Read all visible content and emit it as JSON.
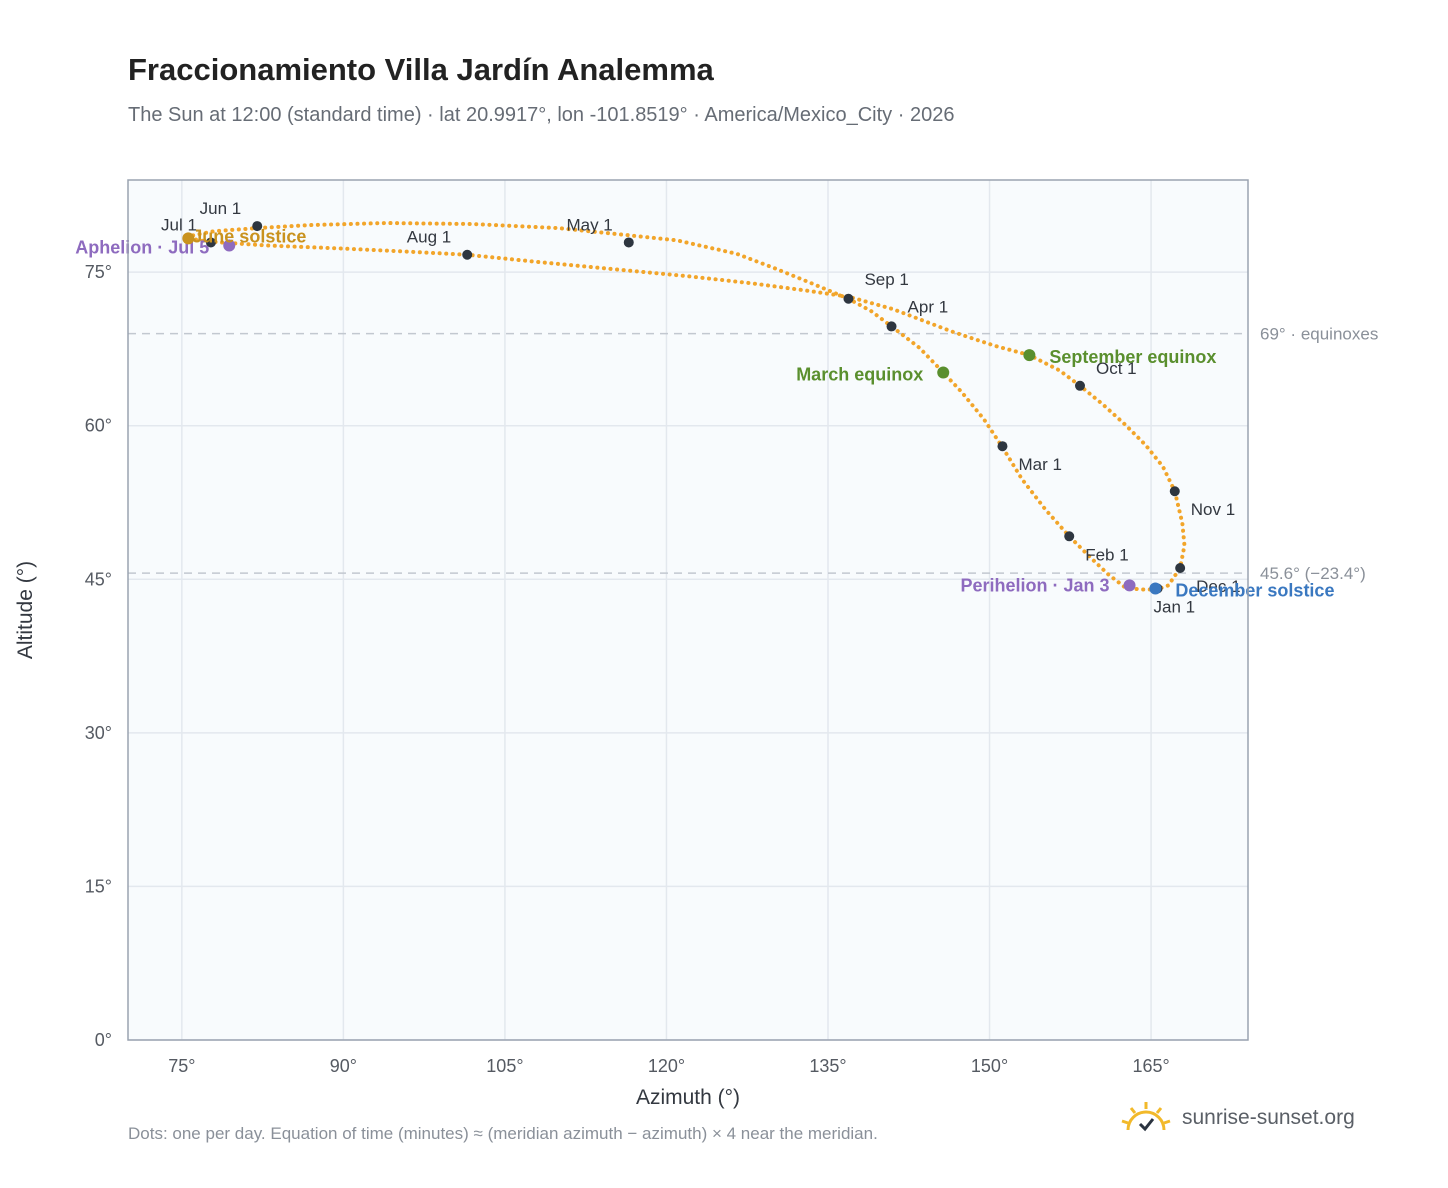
{
  "header": {
    "title": "Fraccionamiento Villa Jardín Analemma",
    "subtitle": "The Sun at 12:00 (standard time) · lat 20.9917°, lon -101.8519° · America/Mexico_City · 2026"
  },
  "footer": {
    "note": "Dots: one per day. Equation of time (minutes) ≈ (meridian azimuth − azimuth) × 4 near the meridian.",
    "brand": "sunrise-sunset.org"
  },
  "chart_data": {
    "type": "scatter",
    "xlabel": "Azimuth (°)",
    "ylabel": "Altitude (°)",
    "xlim": [
      70,
      174
    ],
    "ylim": [
      0,
      84
    ],
    "x_ticks": [
      75,
      90,
      105,
      120,
      135,
      150,
      165
    ],
    "x_tick_labels": [
      "75°",
      "90°",
      "105°",
      "120°",
      "135°",
      "150°",
      "165°"
    ],
    "y_ticks": [
      0,
      15,
      30,
      45,
      60,
      75
    ],
    "y_tick_labels": [
      "0°",
      "15°",
      "30°",
      "45°",
      "60°",
      "75°"
    ],
    "grid": true,
    "path_color": "#f2a52a",
    "analemma_path": [
      [
        165.5,
        44.0
      ],
      [
        164.0,
        44.0
      ],
      [
        162.6,
        44.2
      ],
      [
        161.0,
        45.5
      ],
      [
        159.3,
        47.2
      ],
      [
        157.4,
        49.2
      ],
      [
        155.2,
        51.8
      ],
      [
        153.0,
        54.8
      ],
      [
        151.2,
        57.9
      ],
      [
        149.5,
        60.6
      ],
      [
        147.4,
        63.3
      ],
      [
        145.7,
        65.2
      ],
      [
        143.5,
        67.6
      ],
      [
        140.9,
        69.7
      ],
      [
        139.0,
        71.2
      ],
      [
        136.9,
        72.4
      ],
      [
        133.5,
        73.9
      ],
      [
        130.0,
        75.4
      ],
      [
        126.5,
        76.8
      ],
      [
        121.0,
        78.1
      ],
      [
        116.5,
        78.6
      ],
      [
        110.0,
        79.3
      ],
      [
        102.0,
        79.7
      ],
      [
        94.0,
        79.8
      ],
      [
        87.0,
        79.6
      ],
      [
        82.0,
        79.3
      ],
      [
        78.0,
        79.0
      ],
      [
        75.6,
        78.5
      ],
      [
        76.5,
        78.1
      ],
      [
        78.6,
        77.9
      ],
      [
        83.0,
        77.6
      ],
      [
        90.0,
        77.3
      ],
      [
        96.0,
        77.0
      ],
      [
        101.5,
        76.7
      ],
      [
        108.0,
        76.0
      ],
      [
        115.0,
        75.3
      ],
      [
        122.0,
        74.6
      ],
      [
        128.0,
        73.9
      ],
      [
        133.0,
        73.2
      ],
      [
        136.9,
        72.6
      ],
      [
        141.0,
        71.4
      ],
      [
        146.5,
        69.2
      ],
      [
        150.5,
        67.8
      ],
      [
        153.7,
        66.9
      ],
      [
        156.5,
        65.4
      ],
      [
        158.4,
        63.9
      ],
      [
        160.5,
        62.1
      ],
      [
        162.6,
        60.1
      ],
      [
        164.5,
        58.1
      ],
      [
        166.1,
        56.0
      ],
      [
        167.2,
        53.6
      ],
      [
        167.9,
        50.5
      ],
      [
        168.1,
        48.3
      ],
      [
        167.7,
        46.1
      ],
      [
        166.6,
        44.4
      ],
      [
        165.5,
        44.0
      ]
    ],
    "month_points": [
      {
        "label": "Jan 1",
        "az": 165.6,
        "alt": 44.1
      },
      {
        "label": "Feb 1",
        "az": 157.4,
        "alt": 49.2
      },
      {
        "label": "Mar 1",
        "az": 151.2,
        "alt": 58.0
      },
      {
        "label": "Apr 1",
        "az": 140.9,
        "alt": 69.7
      },
      {
        "label": "May 1",
        "az": 116.5,
        "alt": 77.9
      },
      {
        "label": "Jun 1",
        "az": 82.0,
        "alt": 79.5
      },
      {
        "label": "Jul 1",
        "az": 77.7,
        "alt": 77.9
      },
      {
        "label": "Aug 1",
        "az": 101.5,
        "alt": 76.7
      },
      {
        "label": "Sep 1",
        "az": 136.9,
        "alt": 72.4
      },
      {
        "label": "Oct 1",
        "az": 158.4,
        "alt": 63.9
      },
      {
        "label": "Nov 1",
        "az": 167.2,
        "alt": 53.6
      },
      {
        "label": "Dec 1",
        "az": 167.7,
        "alt": 46.1
      }
    ],
    "events": [
      {
        "label": "Aphelion · Jul 5",
        "az": 79.4,
        "alt": 77.6,
        "color": "#8e6bbf"
      },
      {
        "label": "June solstice",
        "az": 75.6,
        "alt": 78.3,
        "color": "#c9921e"
      },
      {
        "label": "March equinox",
        "az": 145.7,
        "alt": 65.2,
        "color": "#5a8f2e"
      },
      {
        "label": "September equinox",
        "az": 153.7,
        "alt": 66.9,
        "color": "#5a8f2e"
      },
      {
        "label": "Perihelion · Jan 3",
        "az": 163.0,
        "alt": 44.4,
        "color": "#8e6bbf"
      },
      {
        "label": "December solstice",
        "az": 165.4,
        "alt": 44.1,
        "color": "#3a78c0"
      }
    ],
    "reference_lines": [
      {
        "alt": 69.0,
        "label": "69° · equinoxes"
      },
      {
        "alt": 45.6,
        "label": "45.6° (−23.4°)"
      }
    ]
  }
}
